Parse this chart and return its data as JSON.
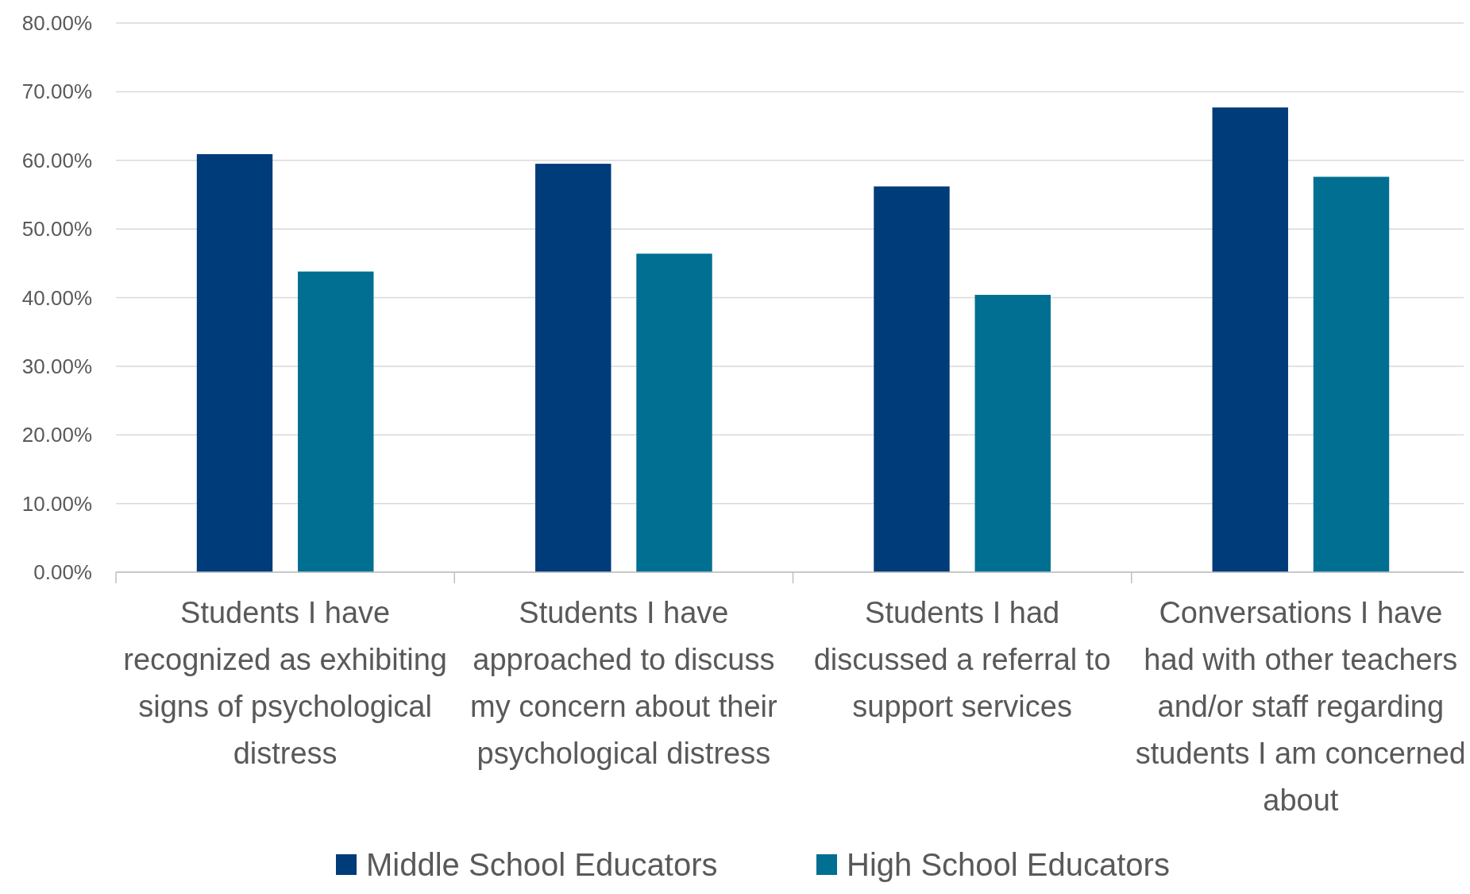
{
  "chart_data": {
    "type": "bar",
    "categories": [
      "Students I have recognized as exhibiting signs of psychological distress",
      "Students I have approached to discuss my concern about their psychological distress",
      "Students I had discussed a referral to support services",
      "Conversations I have had with other teachers and/or staff regarding students I am concerned about"
    ],
    "series": [
      {
        "name": "Middle School Educators",
        "color": "#003b7a",
        "values": [
          60.9,
          59.5,
          56.2,
          67.7
        ]
      },
      {
        "name": "High School Educators",
        "color": "#006f91",
        "values": [
          43.8,
          46.4,
          40.4,
          57.6
        ]
      }
    ],
    "ylim": [
      0,
      80
    ],
    "yticks": [
      {
        "value": 0,
        "label": "0.00%"
      },
      {
        "value": 10,
        "label": "10.00%"
      },
      {
        "value": 20,
        "label": "20.00%"
      },
      {
        "value": 30,
        "label": "30.00%"
      },
      {
        "value": 40,
        "label": "40.00%"
      },
      {
        "value": 50,
        "label": "50.00%"
      },
      {
        "value": 60,
        "label": "60.00%"
      },
      {
        "value": 70,
        "label": "70.00%"
      },
      {
        "value": 80,
        "label": "80.00%"
      }
    ],
    "grid": "y",
    "legend": "bottom"
  }
}
